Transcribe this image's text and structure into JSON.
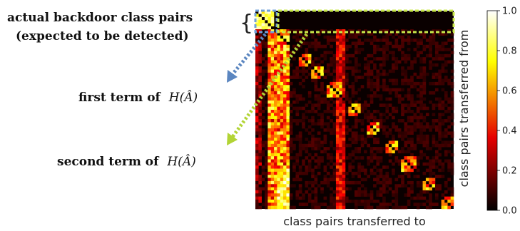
{
  "annotations": {
    "title_line1": "actual backdoor class pairs",
    "title_line2": "(expected to be detected)",
    "first_term_prefix": "first term of",
    "first_term_math": "H(Â)",
    "second_term_prefix": "second term of",
    "second_term_math": "H(Â)",
    "brace": "{"
  },
  "colors": {
    "first_term_arrow": "#5b86c0",
    "second_term_arrow": "#b2d435",
    "highlight_box_blue": "#6fa0d8",
    "highlight_box_green": "#c8e84a"
  },
  "chart_data": {
    "type": "heatmap",
    "title": "",
    "xlabel": "class pairs transferred to",
    "ylabel": "class pairs transferred from",
    "colormap": "hot",
    "vmin": 0.0,
    "vmax": 1.0,
    "colorbar_ticks": [
      "0.0",
      "0.2",
      "0.4",
      "0.6",
      "0.8",
      "1.0"
    ],
    "grid": false,
    "matrix_size": 64
  }
}
